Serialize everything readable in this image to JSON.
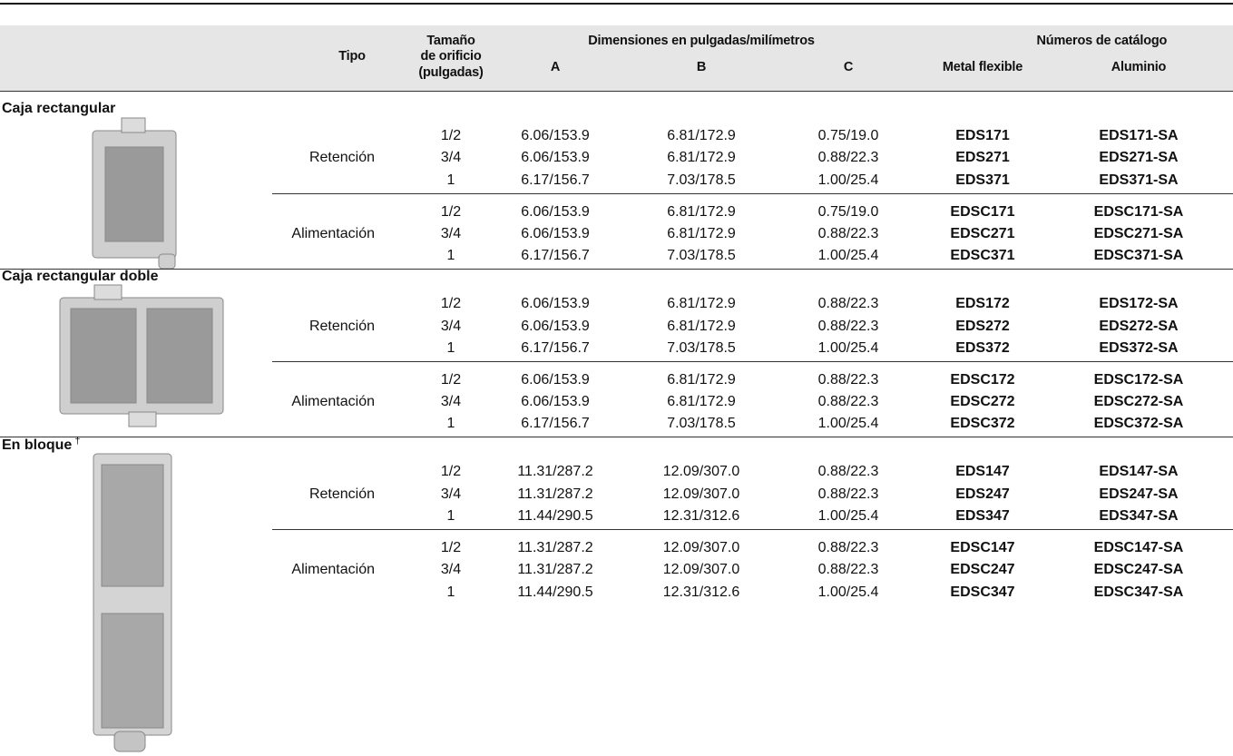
{
  "header": {
    "tipo": "Tipo",
    "tamano": [
      "Tamaño",
      "de orificio",
      "(pulgadas)"
    ],
    "dimensiones": "Dimensiones en pulgadas/milímetros",
    "a": "A",
    "b": "B",
    "c": "C",
    "catalogo": "Números de catálogo",
    "metal": "Metal flexible",
    "aluminio": "Aluminio"
  },
  "sections": [
    {
      "title": "Caja rectangular",
      "groups": [
        {
          "type": "Retención",
          "rows": [
            [
              "1/2",
              "6.06/153.9",
              "6.81/172.9",
              "0.75/19.0",
              "EDS171",
              "EDS171-SA"
            ],
            [
              "3/4",
              "6.06/153.9",
              "6.81/172.9",
              "0.88/22.3",
              "EDS271",
              "EDS271-SA"
            ],
            [
              "1",
              "6.17/156.7",
              "7.03/178.5",
              "1.00/25.4",
              "EDS371",
              "EDS371-SA"
            ]
          ]
        },
        {
          "type": "Alimentación",
          "rows": [
            [
              "1/2",
              "6.06/153.9",
              "6.81/172.9",
              "0.75/19.0",
              "EDSC171",
              "EDSC171-SA"
            ],
            [
              "3/4",
              "6.06/153.9",
              "6.81/172.9",
              "0.88/22.3",
              "EDSC271",
              "EDSC271-SA"
            ],
            [
              "1",
              "6.17/156.7",
              "7.03/178.5",
              "1.00/25.4",
              "EDSC371",
              "EDSC371-SA"
            ]
          ]
        }
      ]
    },
    {
      "title": "Caja rectangular doble",
      "groups": [
        {
          "type": "Retención",
          "rows": [
            [
              "1/2",
              "6.06/153.9",
              "6.81/172.9",
              "0.88/22.3",
              "EDS172",
              "EDS172-SA"
            ],
            [
              "3/4",
              "6.06/153.9",
              "6.81/172.9",
              "0.88/22.3",
              "EDS272",
              "EDS272-SA"
            ],
            [
              "1",
              "6.17/156.7",
              "7.03/178.5",
              "1.00/25.4",
              "EDS372",
              "EDS372-SA"
            ]
          ]
        },
        {
          "type": "Alimentación",
          "rows": [
            [
              "1/2",
              "6.06/153.9",
              "6.81/172.9",
              "0.88/22.3",
              "EDSC172",
              "EDSC172-SA"
            ],
            [
              "3/4",
              "6.06/153.9",
              "6.81/172.9",
              "0.88/22.3",
              "EDSC272",
              "EDSC272-SA"
            ],
            [
              "1",
              "6.17/156.7",
              "7.03/178.5",
              "1.00/25.4",
              "EDSC372",
              "EDSC372-SA"
            ]
          ]
        }
      ]
    },
    {
      "title": "En bloque",
      "mark": "†",
      "groups": [
        {
          "type": "Retención",
          "rows": [
            [
              "1/2",
              "11.31/287.2",
              "12.09/307.0",
              "0.88/22.3",
              "EDS147",
              "EDS147-SA"
            ],
            [
              "3/4",
              "11.31/287.2",
              "12.09/307.0",
              "0.88/22.3",
              "EDS247",
              "EDS247-SA"
            ],
            [
              "1",
              "11.44/290.5",
              "12.31/312.6",
              "1.00/25.4",
              "EDS347",
              "EDS347-SA"
            ]
          ]
        },
        {
          "type": "Alimentación",
          "rows": [
            [
              "1/2",
              "11.31/287.2",
              "12.09/307.0",
              "0.88/22.3",
              "EDSC147",
              "EDSC147-SA"
            ],
            [
              "3/4",
              "11.31/287.2",
              "12.09/307.0",
              "0.88/22.3",
              "EDSC247",
              "EDSC247-SA"
            ],
            [
              "1",
              "11.44/290.5",
              "12.31/312.6",
              "1.00/25.4",
              "EDSC347",
              "EDSC347-SA"
            ]
          ]
        }
      ]
    }
  ]
}
